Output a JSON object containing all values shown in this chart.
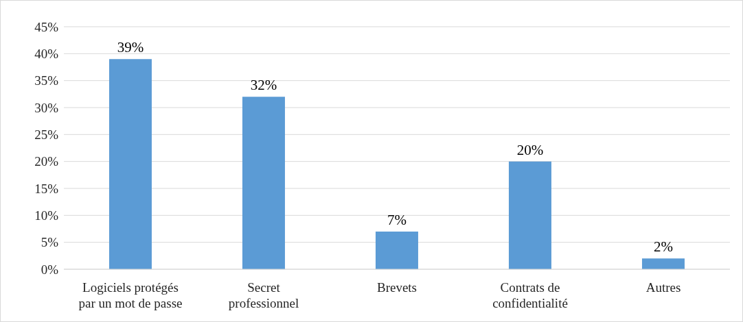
{
  "chart_data": {
    "type": "bar",
    "categories": [
      "Logiciels protégés par un mot de passe",
      "Secret professionnel",
      "Brevets",
      "Contrats de confidentialité",
      "Autres"
    ],
    "values": [
      39,
      32,
      7,
      20,
      2
    ],
    "value_labels": [
      "39%",
      "32%",
      "7%",
      "20%",
      "2%"
    ],
    "color": "#5b9bd5",
    "ylim": [
      0,
      45
    ],
    "yticks": [
      {
        "value": 0,
        "label": "0%"
      },
      {
        "value": 5,
        "label": "5%"
      },
      {
        "value": 10,
        "label": "10%"
      },
      {
        "value": 15,
        "label": "15%"
      },
      {
        "value": 20,
        "label": "20%"
      },
      {
        "value": 25,
        "label": "25%"
      },
      {
        "value": 30,
        "label": "30%"
      },
      {
        "value": 35,
        "label": "35%"
      },
      {
        "value": 40,
        "label": "40%"
      },
      {
        "value": 45,
        "label": "45%"
      }
    ],
    "grid": "y",
    "legend": false
  }
}
